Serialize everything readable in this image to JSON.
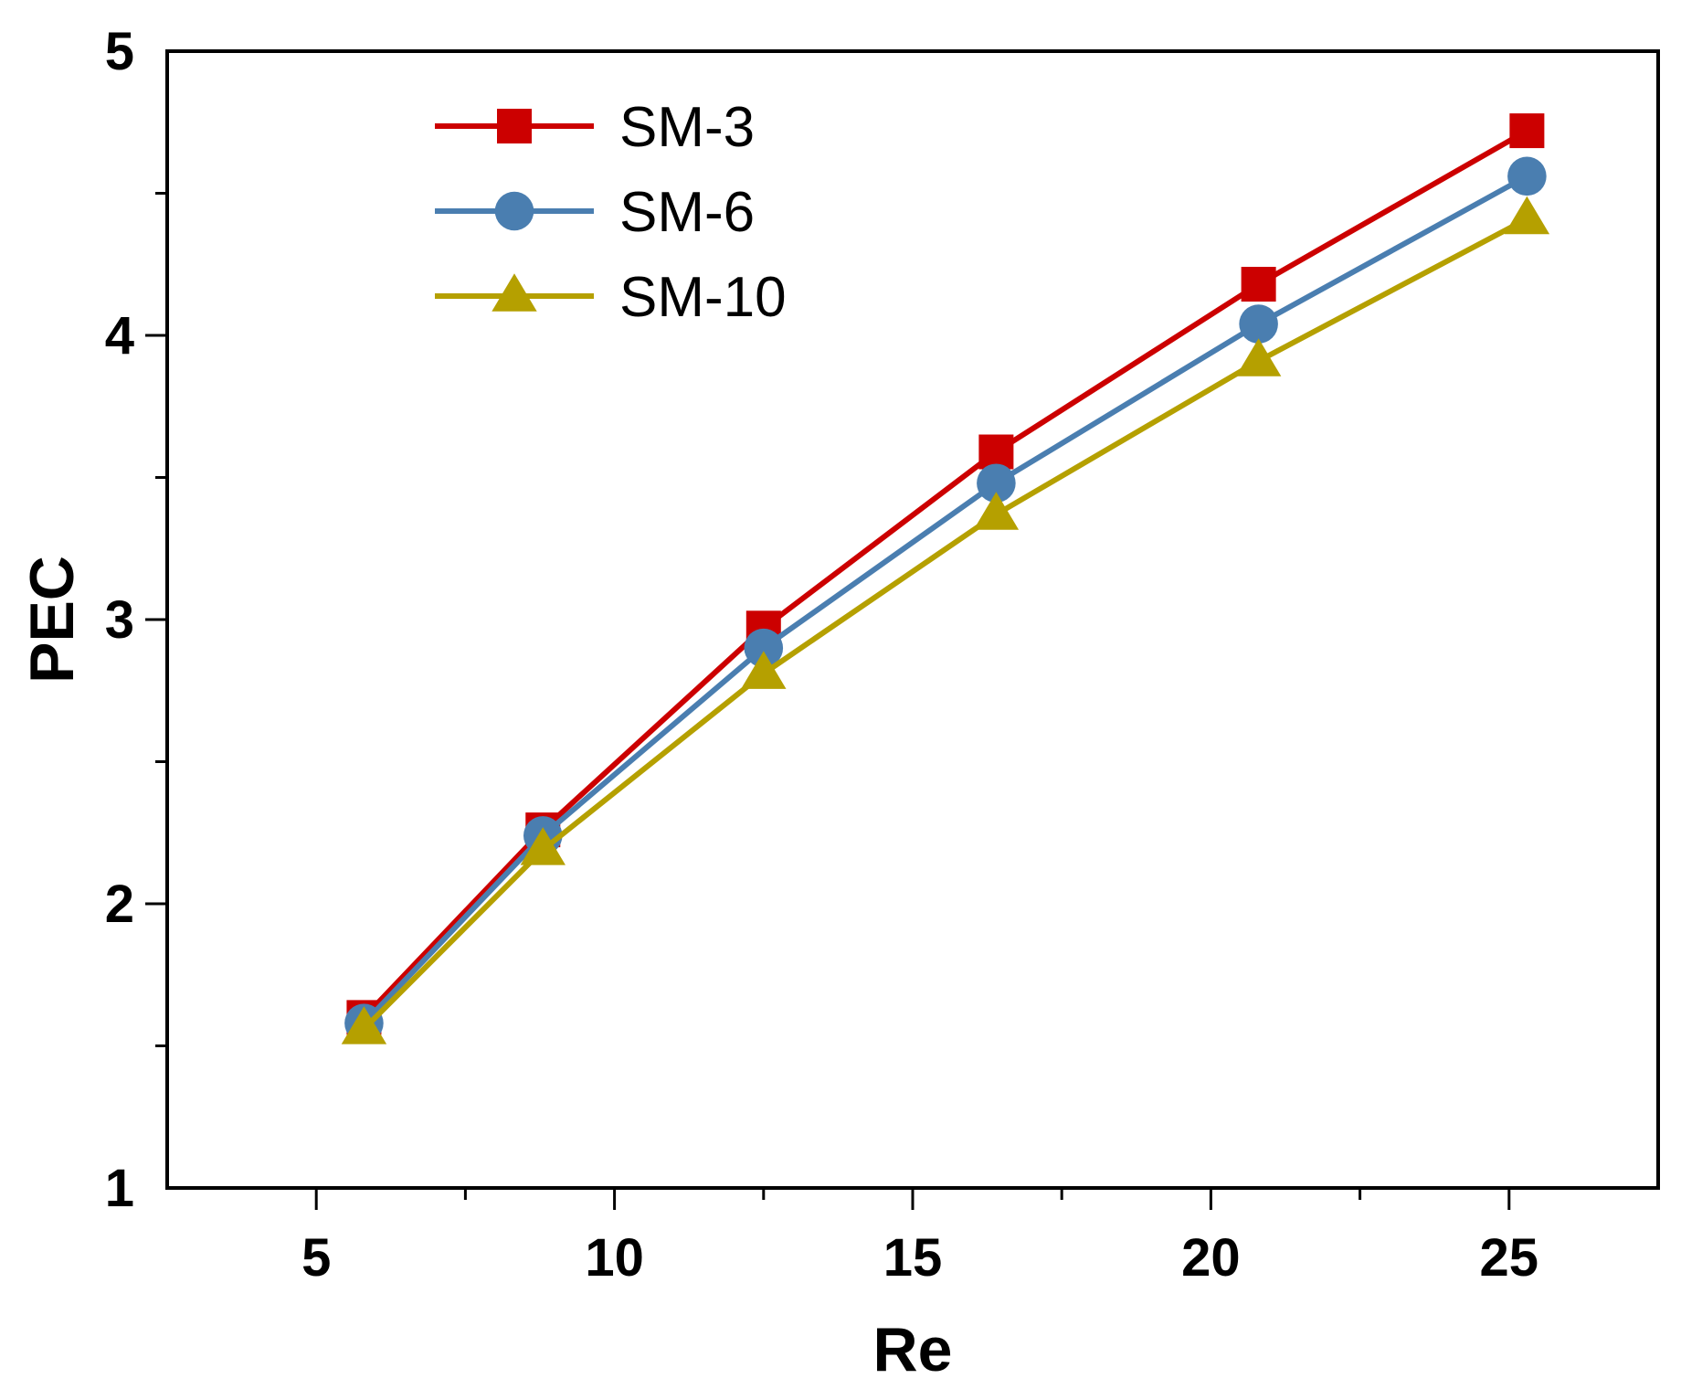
{
  "chart_data": {
    "type": "line",
    "title": "",
    "xlabel": "Re",
    "ylabel": "PEC",
    "xlim": [
      2.5,
      27.5
    ],
    "ylim": [
      1,
      5
    ],
    "xticks": [
      5,
      10,
      15,
      20,
      25
    ],
    "xtick_labels": [
      "5",
      "10",
      "15",
      "20",
      "25"
    ],
    "yticks": [
      1,
      2,
      3,
      4,
      5
    ],
    "ytick_labels": [
      "1",
      "2",
      "3",
      "4",
      "5"
    ],
    "x_minor_step": 2.5,
    "y_minor_step": 0.5,
    "grid": false,
    "legend_position": "top-left",
    "series": [
      {
        "name": "SM-3",
        "color": "#cc0000",
        "marker": "square",
        "x": [
          5.8,
          8.8,
          12.5,
          16.4,
          20.8,
          25.3
        ],
        "y": [
          1.6,
          2.26,
          2.97,
          3.59,
          4.18,
          4.72
        ]
      },
      {
        "name": "SM-6",
        "color": "#4a7eb0",
        "marker": "circle",
        "x": [
          5.8,
          8.8,
          12.5,
          16.4,
          20.8,
          25.3
        ],
        "y": [
          1.58,
          2.24,
          2.9,
          3.48,
          4.04,
          4.56
        ]
      },
      {
        "name": "SM-10",
        "color": "#b5a000",
        "marker": "triangle",
        "x": [
          5.8,
          8.8,
          12.5,
          16.4,
          20.8,
          25.3
        ],
        "y": [
          1.56,
          2.19,
          2.81,
          3.37,
          3.91,
          4.41
        ]
      }
    ]
  }
}
